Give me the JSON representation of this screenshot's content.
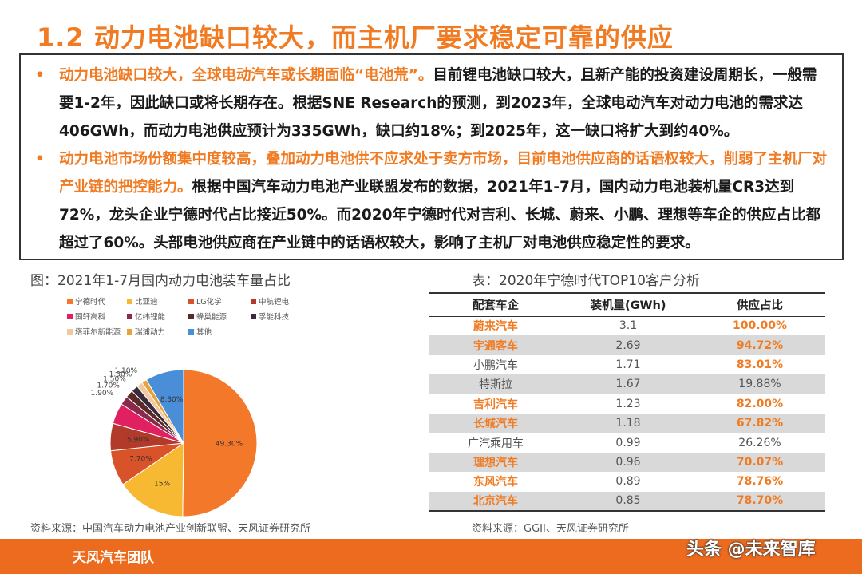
{
  "slide": {
    "title": "1.2 动力电池缺口较大，而主机厂要求稳定可靠的供应"
  },
  "paragraphs": [
    {
      "bullet": "•",
      "highlight": "动力电池缺口较大，全球电动汽车或长期面临“电池荒”。",
      "body": "目前锂电池缺口较大，且新产能的投资建设周期长，一般需要1-2年，因此缺口或将长期存在。根据SNE Research的预测，到2023年，全球电动汽车对动力电池的需求达406GWh，而动力电池供应预计为335GWh，缺口约18%；到2025年，这一缺口将扩大到约40%。"
    },
    {
      "bullet": "•",
      "highlight": "动力电池市场份额集中度较高，叠加动力电池供不应求处于卖方市场，目前电池供应商的话语权较大，削弱了主机厂对产业链的把控能力。",
      "body": "根据中国汽车动力电池产业联盟发布的数据，2021年1-7月，国内动力电池装机量CR3达到72%，龙头企业宁德时代占比接近50%。而2020年宁德时代对吉利、长城、蔚来、小鹏、理想等车企的供应占比都超过了60%。头部电池供应商在产业链中的话语权较大，影响了主机厂对电池供应稳定性的要求。"
    }
  ],
  "figure": {
    "caption": "图：2021年1-7月国内动力电池装车量占比",
    "source": "资料来源：中国汽车动力电池产业创新联盟、天风证券研究所"
  },
  "table": {
    "caption": "表：2020年宁德时代TOP10客户分析",
    "headers": [
      "配套车企",
      "装机量(GWh)",
      "供应占比"
    ],
    "rows": [
      {
        "name": "蔚来汽车",
        "gwh": "3.1",
        "pct": "100.00%",
        "hl": true
      },
      {
        "name": "宇通客车",
        "gwh": "2.69",
        "pct": "94.72%",
        "hl": true
      },
      {
        "name": "小鹏汽车",
        "gwh": "1.71",
        "pct": "83.01%",
        "hl": false,
        "hl_pct": true
      },
      {
        "name": "特斯拉",
        "gwh": "1.67",
        "pct": "19.88%",
        "hl": false
      },
      {
        "name": "吉利汽车",
        "gwh": "1.23",
        "pct": "82.00%",
        "hl": true
      },
      {
        "name": "长城汽车",
        "gwh": "1.18",
        "pct": "67.82%",
        "hl": true
      },
      {
        "name": "广汽乘用车",
        "gwh": "0.99",
        "pct": "26.26%",
        "hl": false
      },
      {
        "name": "理想汽车",
        "gwh": "0.96",
        "pct": "70.07%",
        "hl": true
      },
      {
        "name": "东风汽车",
        "gwh": "0.89",
        "pct": "78.76%",
        "hl": true
      },
      {
        "name": "北京汽车",
        "gwh": "0.85",
        "pct": "78.70%",
        "hl": true
      }
    ],
    "source": "资料来源：GGII、天风证券研究所"
  },
  "chart_data": {
    "type": "pie",
    "title": "图：2021年1-7月国内动力电池装车量占比",
    "legend_position": "top",
    "slices": [
      {
        "name": "宁德时代",
        "value": 49.3,
        "label": "49.30%",
        "color": "#f4782a"
      },
      {
        "name": "比亚迪",
        "value": 15,
        "label": "15%",
        "color": "#f7b832"
      },
      {
        "name": "LG化学",
        "value": 7.7,
        "label": "7.70%",
        "color": "#d9532a"
      },
      {
        "name": "中航锂电",
        "value": 5.9,
        "label": "5.90%",
        "color": "#b23a2a"
      },
      {
        "name": "国轩高科",
        "value": 4.5,
        "label": "",
        "color": "#e02060"
      },
      {
        "name": "亿纬锂能",
        "value": 1.9,
        "label": "1.90%",
        "color": "#8a2a4a"
      },
      {
        "name": "蜂巢能源",
        "value": 1.7,
        "label": "1.70%",
        "color": "#5a2a2a"
      },
      {
        "name": "孚能科技",
        "value": 1.5,
        "label": "1.50%",
        "color": "#3a2a3a"
      },
      {
        "name": "塔菲尔新能源",
        "value": 1.3,
        "label": "1.30%",
        "color": "#f2c8a0"
      },
      {
        "name": "瑞浦动力",
        "value": 1.1,
        "label": "1.10%",
        "color": "#e8a23a"
      },
      {
        "name": "其他",
        "value": 8.3,
        "label": "8.30%",
        "color": "#4a8ed8"
      }
    ]
  },
  "footer": {
    "team": "天风汽车团队",
    "watermark": "头条 @未来智库"
  }
}
